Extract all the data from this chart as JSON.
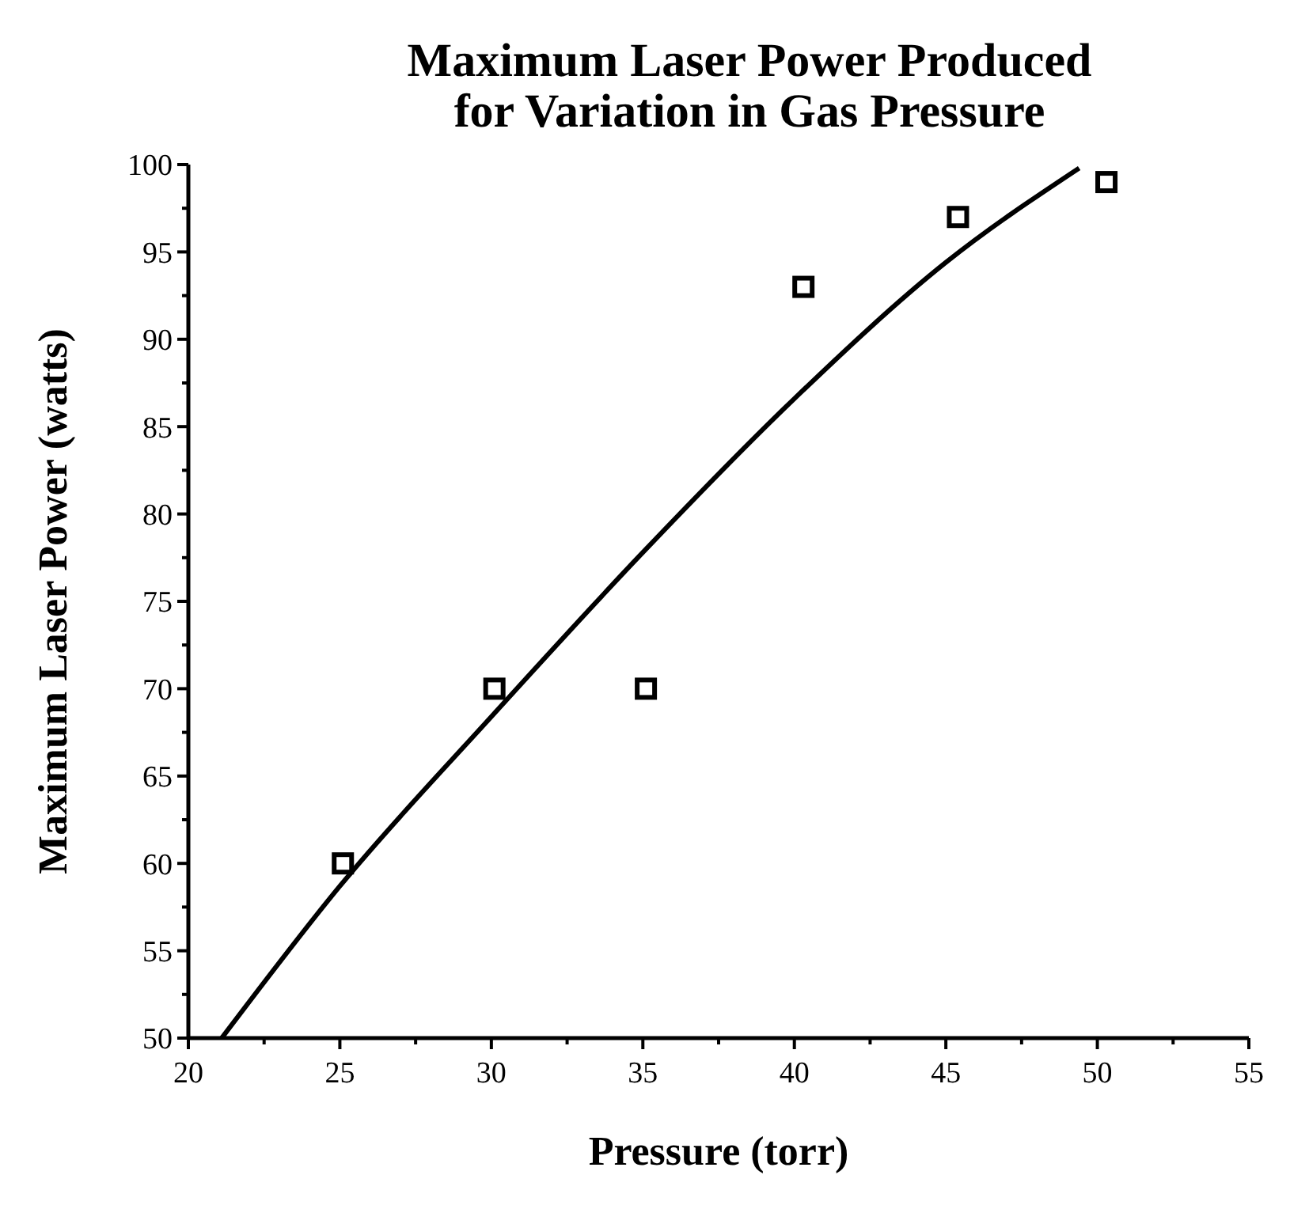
{
  "chart_data": {
    "type": "scatter",
    "title": "Maximum Laser Power Produced\nfor Variation in Gas Pressure",
    "xlabel": "Pressure (torr)",
    "ylabel": "Maximum Laser Power (watts)",
    "xlim": [
      20,
      55
    ],
    "ylim": [
      50,
      100
    ],
    "xticks": [
      20,
      {
        "value": 22.5,
        "label": null
      },
      25,
      {
        "value": 27.5,
        "label": null
      },
      30,
      {
        "value": 32.5,
        "label": null
      },
      35,
      {
        "value": 37.5,
        "label": null
      },
      40,
      {
        "value": 42.5,
        "label": null
      },
      45,
      {
        "value": 47.5,
        "label": null
      },
      50,
      {
        "value": 52.5,
        "label": null
      },
      55
    ],
    "yticks": [
      50,
      {
        "value": 52.5,
        "label": null
      },
      55,
      {
        "value": 57.5,
        "label": null
      },
      60,
      {
        "value": 62.5,
        "label": null
      },
      65,
      {
        "value": 67.5,
        "label": null
      },
      70,
      {
        "value": 72.5,
        "label": null
      },
      75,
      {
        "value": 77.5,
        "label": null
      },
      80,
      {
        "value": 82.5,
        "label": null
      },
      85,
      {
        "value": 87.5,
        "label": null
      },
      90,
      {
        "value": 92.5,
        "label": null
      },
      95,
      {
        "value": 97.5,
        "label": null
      },
      100
    ],
    "grid": false,
    "series": [
      {
        "marker": "square",
        "color": "#000000",
        "x": [
          25.1,
          30.1,
          35.1,
          40.3,
          45.4,
          50.3
        ],
        "values": [
          60,
          70,
          70,
          93,
          97,
          99
        ]
      },
      {
        "type": "line",
        "line_style": "solid",
        "color": "#000000",
        "x": [
          21.1,
          25,
          30,
          35,
          40,
          45,
          49.4
        ],
        "values": [
          50,
          58.7,
          68.4,
          77.8,
          86.6,
          94.4,
          99.8
        ]
      }
    ]
  }
}
